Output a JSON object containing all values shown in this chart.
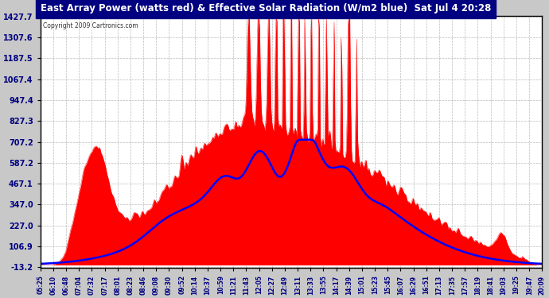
{
  "title": "East Array Power (watts red) & Effective Solar Radiation (W/m2 blue)  Sat Jul 4 20:28",
  "copyright": "Copyright 2009 Cartronics.com",
  "yticks": [
    1427.7,
    1307.6,
    1187.5,
    1067.4,
    947.4,
    827.3,
    707.2,
    587.2,
    467.1,
    347.0,
    227.0,
    106.9,
    -13.2
  ],
  "ymin": -13.2,
  "ymax": 1427.7,
  "bg_color": "#c8c8c8",
  "plot_bg": "#ffffff",
  "title_bg": "#000080",
  "title_color": "#ffffff",
  "red_color": "#ff0000",
  "blue_color": "#0000ff",
  "xtick_labels": [
    "05:25",
    "06:10",
    "06:48",
    "07:04",
    "07:32",
    "07:17",
    "08:01",
    "08:23",
    "08:46",
    "09:08",
    "09:30",
    "09:52",
    "10:14",
    "10:37",
    "10:59",
    "11:21",
    "11:43",
    "12:05",
    "12:27",
    "12:49",
    "13:11",
    "13:33",
    "13:55",
    "14:17",
    "14:39",
    "15:01",
    "15:23",
    "15:45",
    "16:07",
    "16:29",
    "16:51",
    "17:13",
    "17:35",
    "17:57",
    "18:19",
    "18:41",
    "19:03",
    "19:25",
    "19:47",
    "20:09"
  ],
  "n_points": 580
}
